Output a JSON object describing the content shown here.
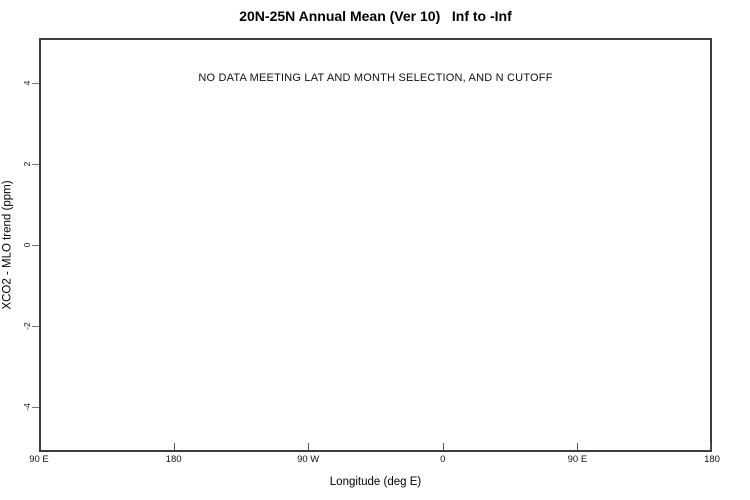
{
  "chart_data": {
    "type": "scatter",
    "title": "20N-25N Annual Mean (Ver 10)   Inf to -Inf",
    "xlabel": "Longitude (deg E)",
    "ylabel": "XCO2 - MLO trend (ppm)",
    "x_tick_labels": [
      "90 E",
      "180",
      "90 W",
      "0",
      "90 E",
      "180"
    ],
    "y_tick_labels": [
      "4",
      "2",
      "0",
      "-2",
      "-4"
    ],
    "y_tick_values": [
      4,
      2,
      0,
      -2,
      -4
    ],
    "ylim": [
      -5.1,
      5.1
    ],
    "grid": false,
    "legend": null,
    "series": [],
    "annotation": "NO DATA MEETING LAT AND MONTH SELECTION, AND N CUTOFF"
  },
  "colors": {
    "background": "#ffffff",
    "axis_box": "#3d3d3d",
    "tick": "#666666",
    "text": "#000000"
  }
}
